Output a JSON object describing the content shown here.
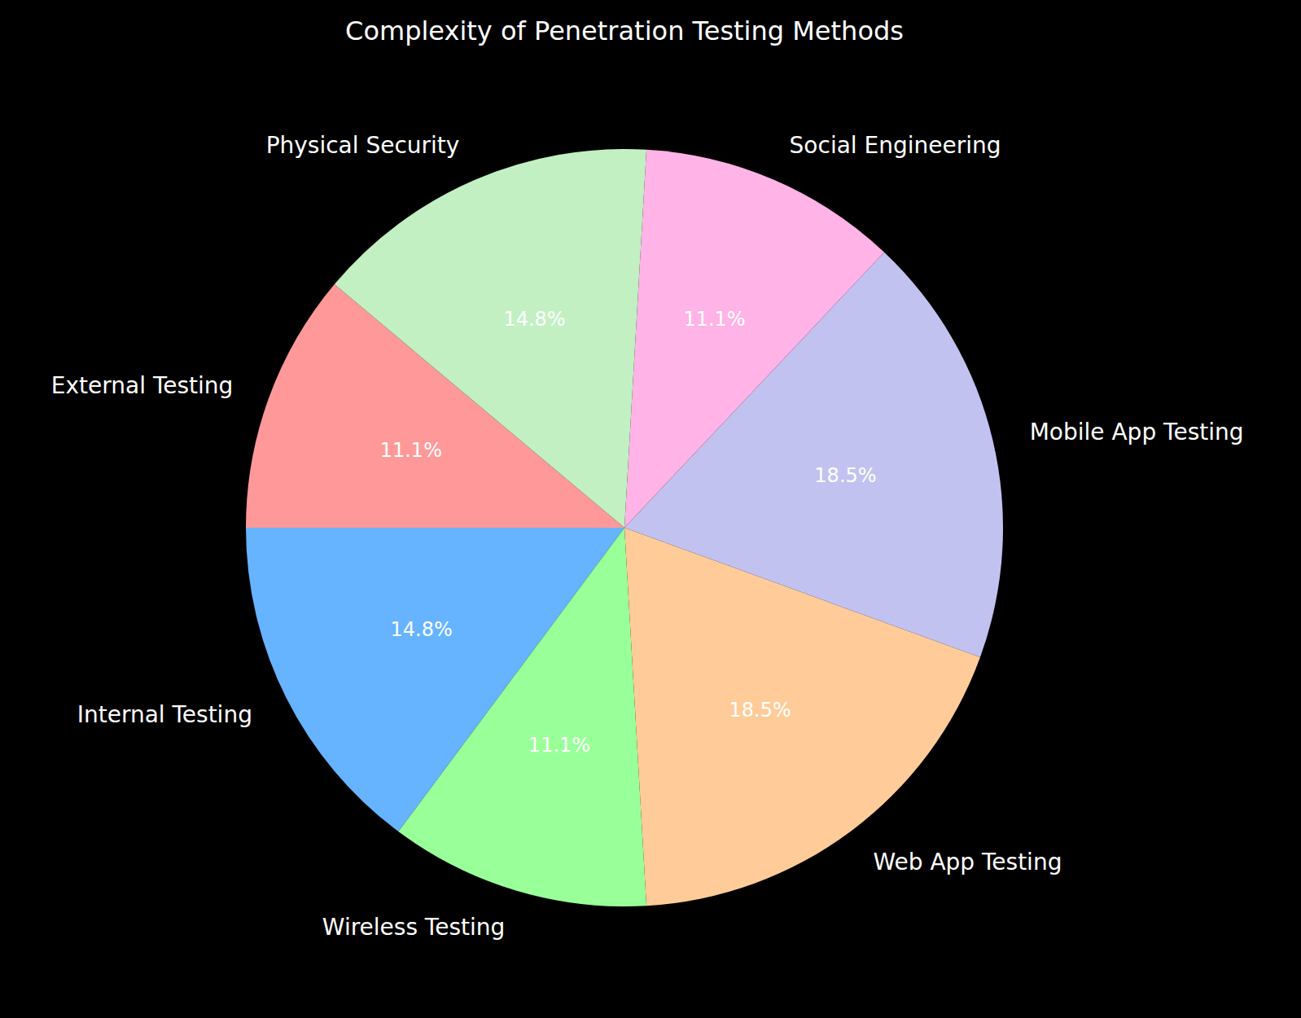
{
  "chart_data": {
    "type": "pie",
    "title": "Complexity of Penetration Testing Methods",
    "categories": [
      "External Testing",
      "Internal Testing",
      "Wireless Testing",
      "Web App Testing",
      "Mobile App Testing",
      "Social Engineering",
      "Physical Security"
    ],
    "values": [
      11.1,
      14.8,
      11.1,
      18.5,
      18.5,
      11.1,
      14.8
    ],
    "value_labels": [
      "11.1%",
      "14.8%",
      "11.1%",
      "18.5%",
      "18.5%",
      "11.1%",
      "14.8%"
    ],
    "colors": [
      "#ff9999",
      "#66b3ff",
      "#99ff99",
      "#ffcc99",
      "#c2c2f0",
      "#ffb3e6",
      "#c2f0c2"
    ],
    "data_labels": true
  }
}
